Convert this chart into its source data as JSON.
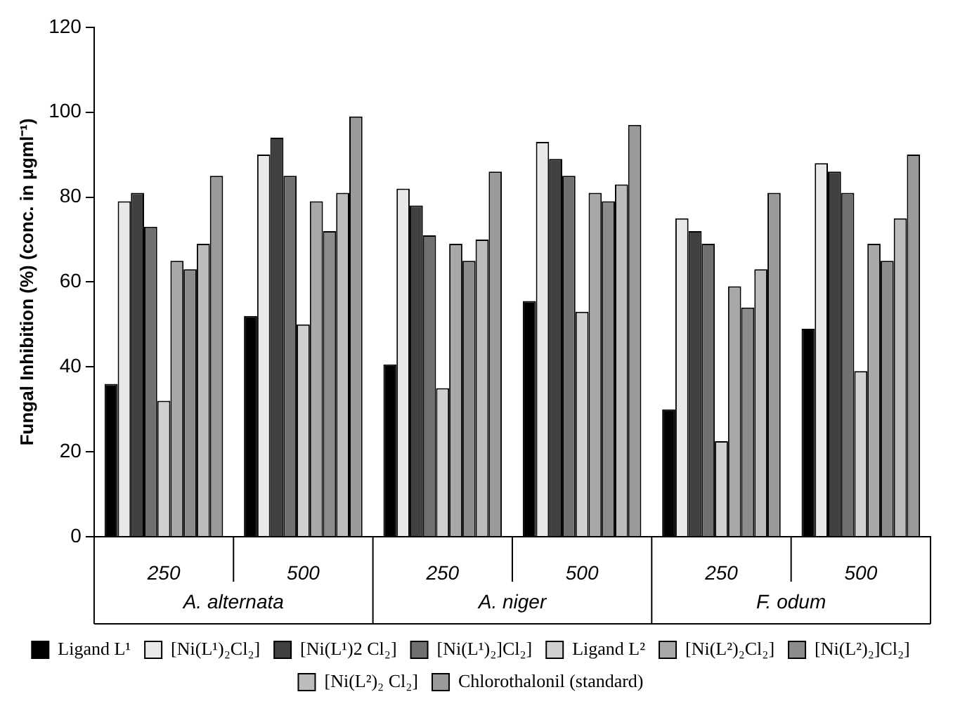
{
  "chart_data": {
    "type": "bar",
    "ylabel": "Fungal Inhibition (%) (conc. in μgml⁻¹)",
    "categories": [
      "250",
      "500",
      "250",
      "500",
      "250",
      "500"
    ],
    "annotations": [
      "A. alternata",
      "A. niger",
      "F. odum"
    ],
    "ylim": [
      0,
      120
    ],
    "yticks": [
      0,
      20,
      40,
      60,
      80,
      100,
      120
    ],
    "grid": false,
    "legend": "bottom",
    "series": [
      {
        "name": "Ligand L¹",
        "color": "#000000",
        "values": [
          36,
          52,
          40.6,
          55.5,
          30,
          49
        ]
      },
      {
        "name": "[Ni(L¹)₂Cl₂]",
        "color": "#e8e8e8",
        "values": [
          79,
          90,
          82,
          93,
          75,
          88
        ]
      },
      {
        "name": "[Ni(L¹)2 Cl₂]",
        "color": "#404040",
        "values": [
          81,
          94,
          78,
          89,
          72,
          86
        ]
      },
      {
        "name": "[Ni(L¹)₂]Cl₂]",
        "color": "#707070",
        "values": [
          73,
          85,
          71,
          85,
          69,
          81
        ]
      },
      {
        "name": "Ligand L²",
        "color": "#d0d0d0",
        "values": [
          32,
          50,
          35,
          53,
          22.5,
          39
        ]
      },
      {
        "name": "[Ni(L²)₂Cl₂]",
        "color": "#a8a8a8",
        "values": [
          65,
          79,
          69,
          81,
          59,
          69
        ]
      },
      {
        "name": "[Ni(L²)₂]Cl₂]",
        "color": "#8c8c8c",
        "values": [
          63,
          72,
          65,
          79,
          54,
          65
        ]
      },
      {
        "name": "[Ni(L²)₂ Cl₂]",
        "color": "#bcbcbc",
        "values": [
          69,
          81,
          70,
          83,
          63,
          75
        ]
      },
      {
        "name": "Chlorothalonil (standard)",
        "color": "#9a9a9a",
        "values": [
          85,
          99,
          86,
          97,
          81,
          90
        ]
      }
    ]
  }
}
